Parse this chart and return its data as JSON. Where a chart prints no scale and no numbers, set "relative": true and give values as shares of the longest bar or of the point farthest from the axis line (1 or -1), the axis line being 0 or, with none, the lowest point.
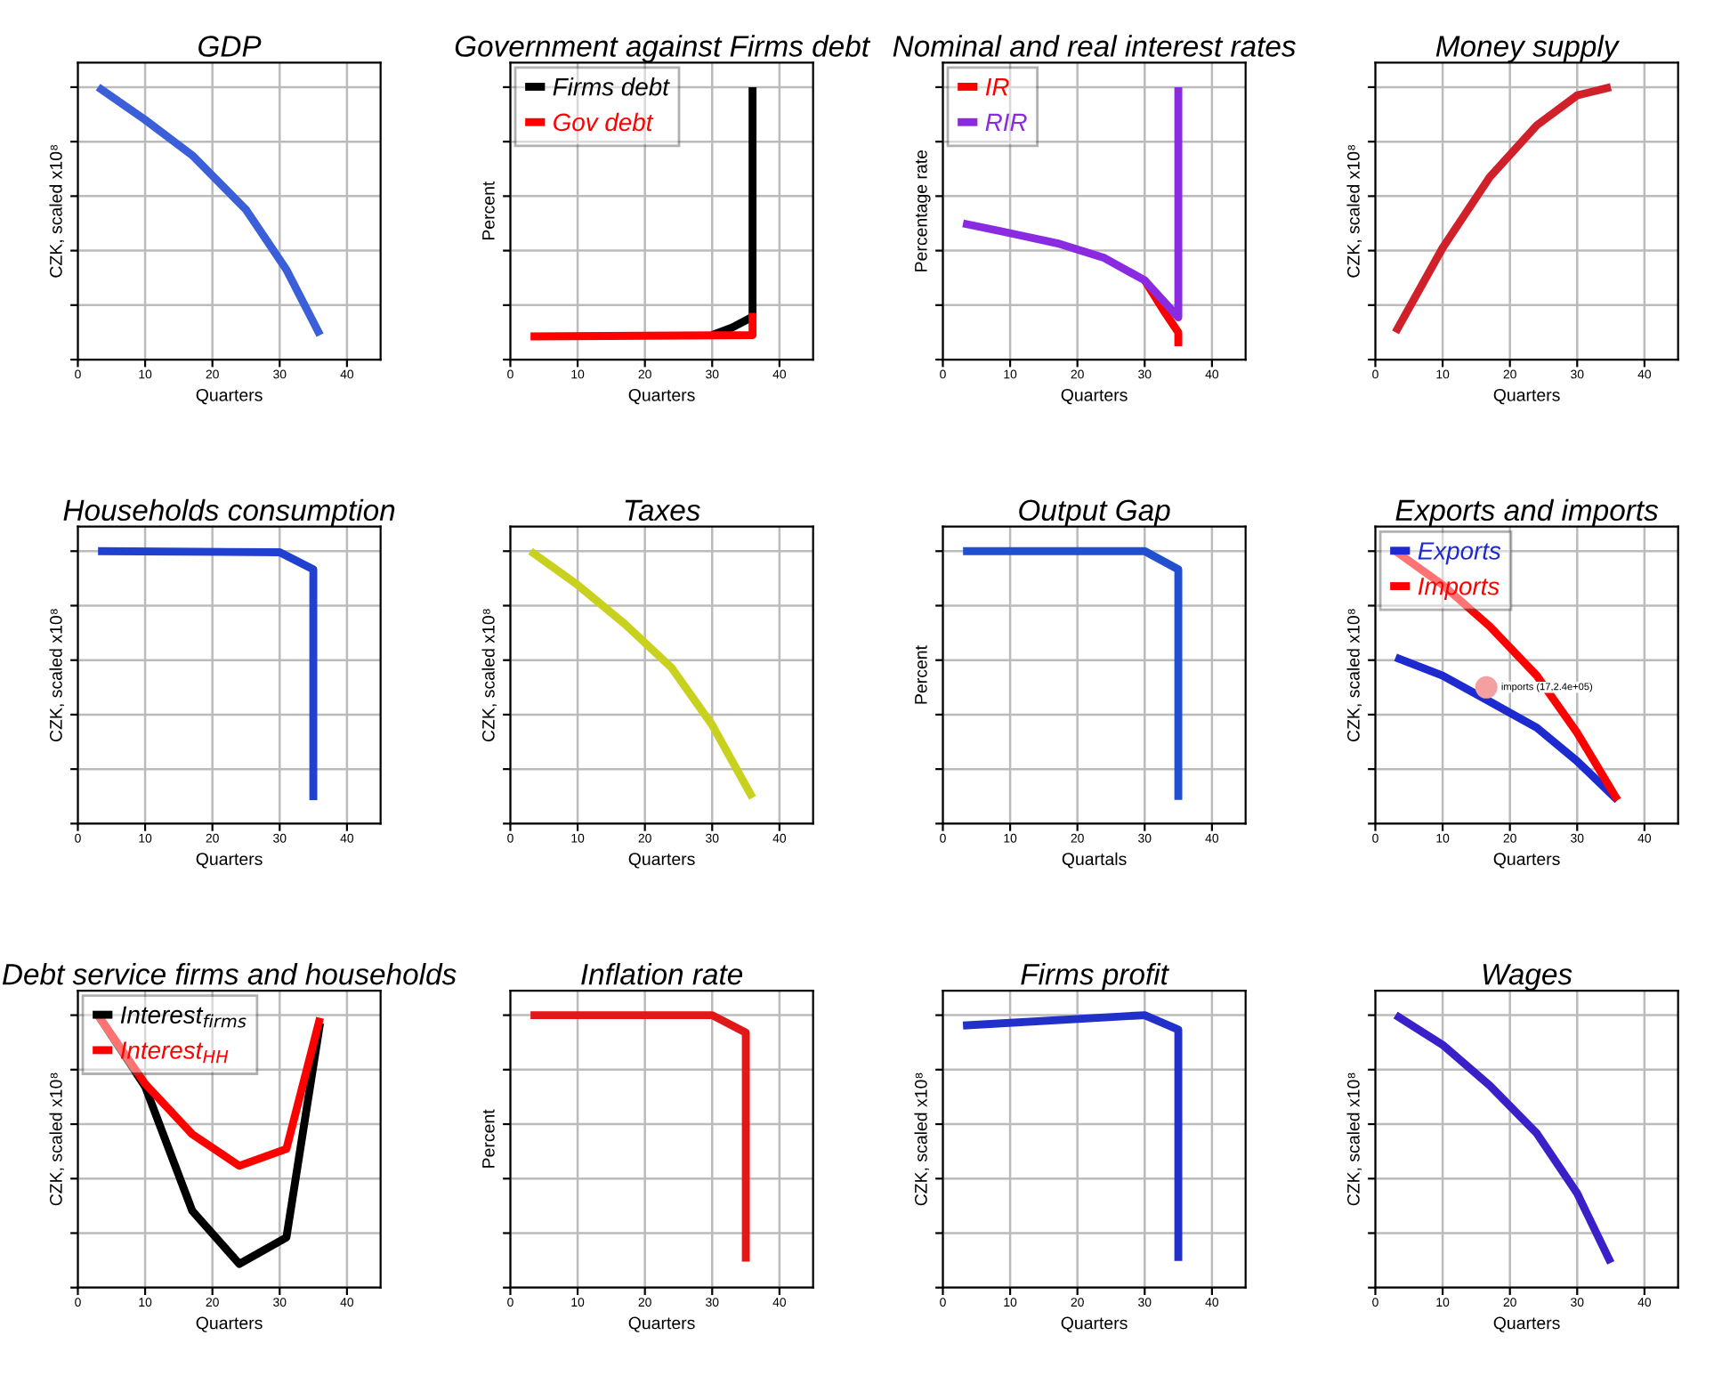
{
  "chart_data": [
    {
      "type": "line",
      "title": "GDP",
      "xlabel": "Quarters",
      "ylabel": "CZK, scaled x10⁸",
      "relative": true,
      "xlim": [
        0,
        45
      ],
      "xticks": [
        0,
        10,
        20,
        30,
        40
      ],
      "grid": true,
      "tick_labels": "x",
      "series": [
        {
          "color": "#3a5fd8",
          "x": [
            3,
            10,
            17,
            25,
            31,
            36
          ],
          "values": [
            1,
            0.88,
            0.75,
            0.55,
            0.33,
            0.09
          ]
        }
      ]
    },
    {
      "type": "line",
      "title": "Government against Firms debt",
      "xlabel": "Quarters",
      "ylabel": "Percent",
      "relative": true,
      "xlim": [
        0,
        45
      ],
      "xticks": [
        0,
        10,
        20,
        30,
        40
      ],
      "grid": true,
      "tick_labels": "x",
      "legend": "top left",
      "series": [
        {
          "name": "Firms debt",
          "color": "#000000",
          "x": [
            30,
            33,
            36,
            36
          ],
          "values": [
            0.09,
            0.118,
            0.157,
            1
          ]
        },
        {
          "name": "Gov debt",
          "color": "#ff0000",
          "x": [
            3,
            36,
            36
          ],
          "values": [
            0.085,
            0.09,
            0.172
          ]
        }
      ]
    },
    {
      "type": "line",
      "title": "Nominal and real interest rates",
      "xlabel": "Quarters",
      "ylabel": "Percentage rate",
      "relative": true,
      "xlim": [
        0,
        45
      ],
      "xticks": [
        0,
        10,
        20,
        30,
        40
      ],
      "grid": true,
      "tick_labels": "x",
      "legend": "top left",
      "series": [
        {
          "name": "IR",
          "color": "#ff0000",
          "x": [
            30,
            33,
            35,
            35
          ],
          "values": [
            0.291,
            0.173,
            0.1,
            0.049
          ]
        },
        {
          "name": "RIR",
          "color": "#8a2be2",
          "x": [
            3,
            10,
            17,
            24,
            30,
            35,
            35
          ],
          "values": [
            0.5,
            0.464,
            0.427,
            0.373,
            0.291,
            0.155,
            1
          ]
        }
      ]
    },
    {
      "type": "line",
      "title": "Money supply",
      "xlabel": "Quarters",
      "ylabel": "CZK, scaled x10⁸",
      "relative": true,
      "xlim": [
        0,
        45
      ],
      "xticks": [
        0,
        10,
        20,
        30,
        40
      ],
      "grid": true,
      "tick_labels": "x",
      "series": [
        {
          "color": "#d0202a",
          "x": [
            3,
            10,
            17,
            24,
            30,
            35
          ],
          "values": [
            0.1,
            0.41,
            0.67,
            0.86,
            0.97,
            1
          ]
        }
      ]
    },
    {
      "type": "line",
      "title": "Households consumption",
      "xlabel": "Quarters",
      "ylabel": "CZK, scaled x10⁸",
      "relative": true,
      "xlim": [
        0,
        45
      ],
      "xticks": [
        0,
        10,
        20,
        30,
        40
      ],
      "grid": true,
      "tick_labels": "x",
      "series": [
        {
          "color": "#2040d0",
          "x": [
            3,
            30,
            35,
            35
          ],
          "values": [
            1,
            0.996,
            0.933,
            0.086
          ]
        }
      ]
    },
    {
      "type": "line",
      "title": "Taxes",
      "xlabel": "Quarters",
      "ylabel": "CZK, scaled x10⁸",
      "relative": true,
      "xlim": [
        0,
        45
      ],
      "xticks": [
        0,
        10,
        20,
        30,
        40
      ],
      "grid": true,
      "tick_labels": "x",
      "series": [
        {
          "color": "#c8d21e",
          "x": [
            3,
            10,
            17,
            24,
            30,
            36
          ],
          "values": [
            1,
            0.876,
            0.733,
            0.571,
            0.362,
            0.095
          ]
        }
      ]
    },
    {
      "type": "line",
      "title": "Output Gap",
      "xlabel": "Quartals",
      "ylabel": "Percent",
      "relative": true,
      "xlim": [
        0,
        45
      ],
      "xticks": [
        0,
        10,
        20,
        30,
        40
      ],
      "grid": true,
      "tick_labels": "x",
      "series": [
        {
          "color": "#2050d0",
          "x": [
            3,
            30,
            35,
            35
          ],
          "values": [
            1,
            1,
            0.933,
            0.087
          ]
        }
      ]
    },
    {
      "type": "line",
      "title": "Exports and imports",
      "xlabel": "Quarters",
      "ylabel": "CZK, scaled x10⁸",
      "relative": true,
      "xlim": [
        0,
        45
      ],
      "xticks": [
        0,
        10,
        20,
        30,
        40
      ],
      "grid": true,
      "tick_labels": "x",
      "legend": "top left",
      "annotations": [
        {
          "text": "imports (17,2.4e+05)",
          "x": 16.5,
          "y": 0.5
        }
      ],
      "series": [
        {
          "name": "Exports",
          "color": "#1c2ad0",
          "x": [
            3,
            10,
            17,
            24,
            30,
            36
          ],
          "values": [
            0.61,
            0.543,
            0.448,
            0.352,
            0.229,
            0.086
          ]
        },
        {
          "name": "Imports",
          "color": "#ff0000",
          "x": [
            3,
            10,
            17,
            24,
            30,
            36
          ],
          "values": [
            1,
            0.876,
            0.724,
            0.543,
            0.333,
            0.086
          ]
        }
      ]
    },
    {
      "type": "line",
      "title": "Debt service firms and households",
      "xlabel": "Quarters",
      "ylabel": "CZK, scaled x10⁸",
      "relative": true,
      "xlim": [
        0,
        45
      ],
      "xticks": [
        0,
        10,
        20,
        30,
        40
      ],
      "grid": true,
      "tick_labels": "x",
      "legend": "top left",
      "series": [
        {
          "name": "Interest$_{firms}$",
          "color": "#000000",
          "x": [
            3,
            10,
            17,
            24,
            31,
            36
          ],
          "values": [
            1,
            0.738,
            0.282,
            0.087,
            0.184,
            0.971
          ]
        },
        {
          "name": "Interest$_{HH}$",
          "color": "#ff0000",
          "x": [
            3,
            10,
            17,
            24,
            31,
            36
          ],
          "values": [
            1,
            0.748,
            0.563,
            0.447,
            0.509,
            0.99
          ]
        }
      ]
    },
    {
      "type": "line",
      "title": "Inflation rate",
      "xlabel": "Quarters",
      "ylabel": "Percent",
      "relative": true,
      "xlim": [
        0,
        45
      ],
      "xticks": [
        0,
        10,
        20,
        30,
        40
      ],
      "grid": true,
      "tick_labels": "x",
      "series": [
        {
          "color": "#e01818",
          "x": [
            3,
            30,
            35,
            35
          ],
          "values": [
            1,
            1,
            0.936,
            0.095
          ]
        }
      ]
    },
    {
      "type": "line",
      "title": "Firms profit",
      "xlabel": "Quarters",
      "ylabel": "CZK, scaled x10⁸",
      "relative": true,
      "xlim": [
        0,
        45
      ],
      "xticks": [
        0,
        10,
        20,
        30,
        40
      ],
      "grid": true,
      "tick_labels": "x",
      "series": [
        {
          "color": "#2030c8",
          "x": [
            3,
            30,
            35,
            35
          ],
          "values": [
            0.962,
            1,
            0.947,
            0.098
          ]
        }
      ]
    },
    {
      "type": "line",
      "title": "Wages",
      "xlabel": "Quarters",
      "ylabel": "CZK, scaled x10⁸",
      "relative": true,
      "xlim": [
        0,
        45
      ],
      "xticks": [
        0,
        10,
        20,
        30,
        40
      ],
      "grid": true,
      "tick_labels": "x",
      "series": [
        {
          "color": "#3a20c8",
          "x": [
            3,
            10,
            17,
            24,
            30,
            35
          ],
          "values": [
            1,
            0.891,
            0.742,
            0.566,
            0.346,
            0.091
          ]
        }
      ]
    }
  ]
}
